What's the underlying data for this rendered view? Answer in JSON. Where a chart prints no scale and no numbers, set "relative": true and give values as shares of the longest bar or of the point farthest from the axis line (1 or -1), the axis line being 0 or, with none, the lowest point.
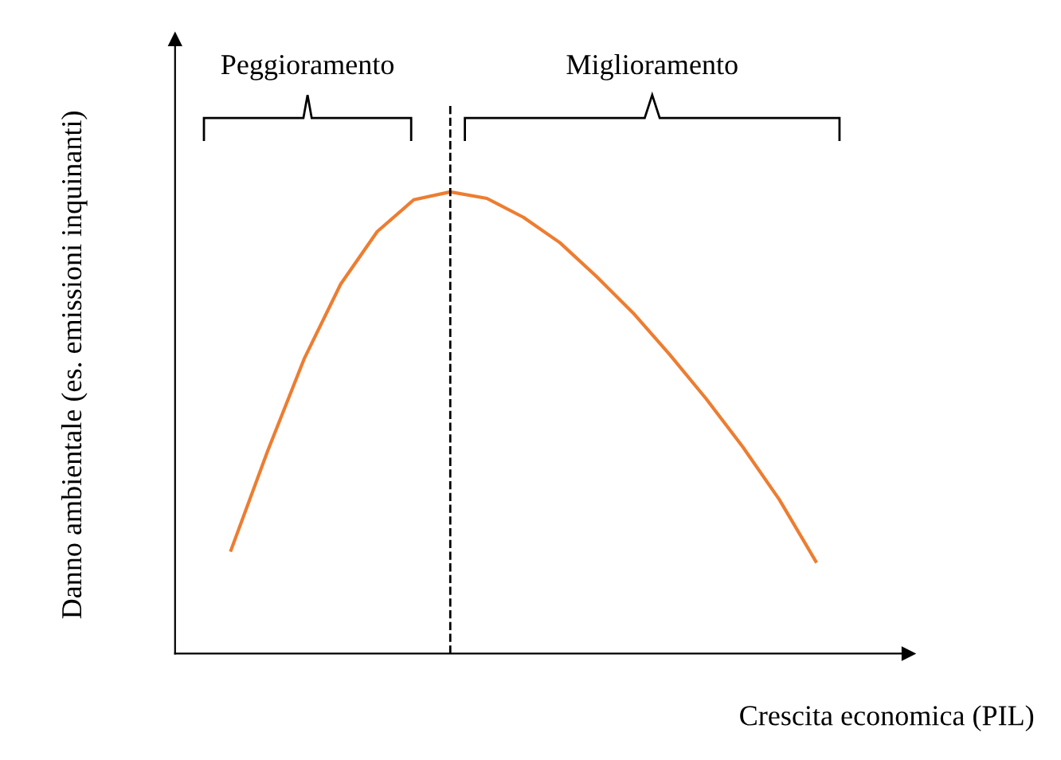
{
  "chart_data": {
    "type": "line",
    "relative": true,
    "xlabel": "Crescita economica (PIL)",
    "ylabel": "Danno ambientale (es. emissioni inquinanti)",
    "categories": [
      null,
      null,
      null,
      null,
      null,
      null,
      null,
      null,
      null,
      null,
      null,
      null,
      null,
      null,
      null,
      null,
      null
    ],
    "series": [
      {
        "color": "#ed7d31",
        "values": [
          0.224,
          0.438,
          0.638,
          0.8,
          0.914,
          0.983,
          1,
          0.986,
          0.945,
          0.89,
          0.817,
          0.738,
          0.648,
          0.552,
          0.448,
          0.334,
          0.2
        ]
      }
    ],
    "annotations": [
      "Peggioramento",
      "Miglioramento"
    ],
    "legend": false,
    "marker": "none",
    "line_style": "solid"
  }
}
